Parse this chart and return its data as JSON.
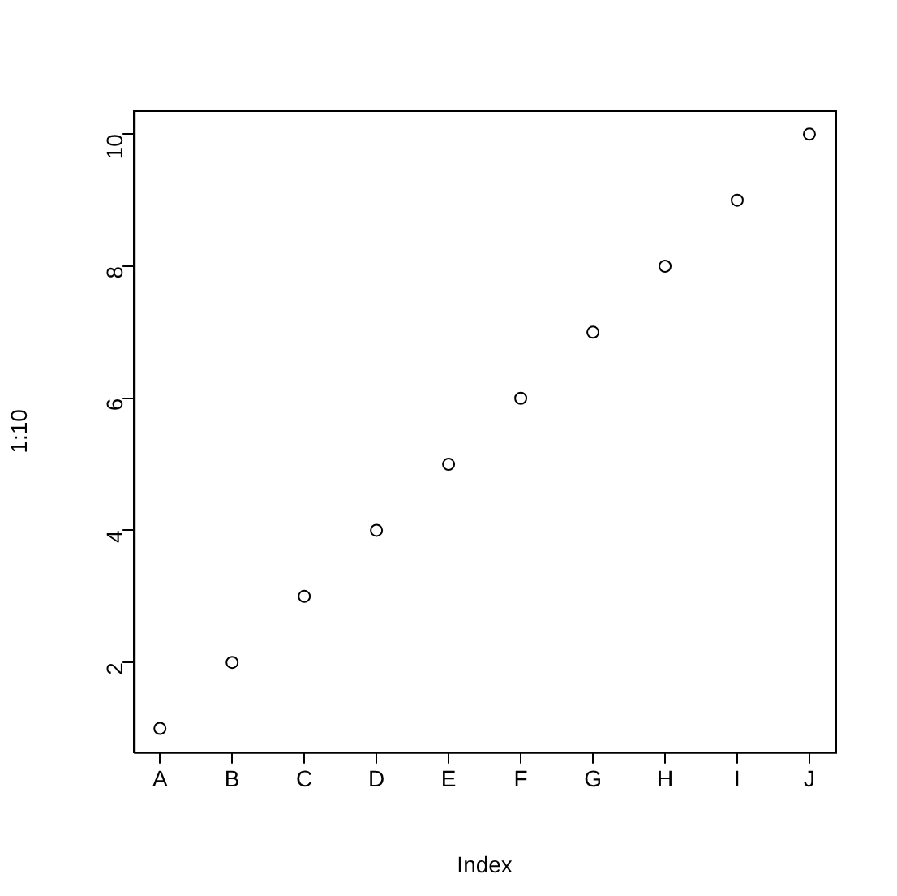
{
  "chart_data": {
    "type": "scatter",
    "xlabel": "Index",
    "ylabel": "1:10",
    "categories": [
      "A",
      "B",
      "C",
      "D",
      "E",
      "F",
      "G",
      "H",
      "I",
      "J"
    ],
    "series": [
      {
        "color": "#000000",
        "values": [
          1,
          2,
          3,
          4,
          5,
          6,
          7,
          8,
          9,
          10
        ]
      }
    ],
    "ylim": [
      0.64,
      10.36
    ],
    "yticks": [
      2,
      4,
      6,
      8,
      10
    ],
    "grid": false,
    "legend": false,
    "marker": "circle"
  }
}
